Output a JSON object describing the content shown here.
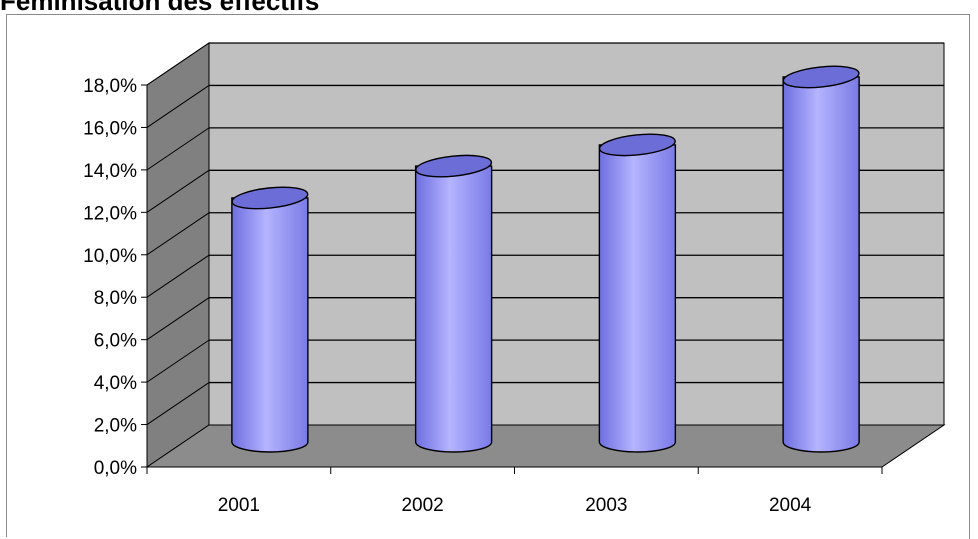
{
  "title": "Féminisation des effectifs",
  "chart_data": {
    "type": "bar",
    "style": "3d-cylinder",
    "categories": [
      "2001",
      "2002",
      "2003",
      "2004"
    ],
    "values": [
      11.5,
      13.0,
      14.0,
      17.2
    ],
    "yticks": [
      "0,0%",
      "2,0%",
      "4,0%",
      "6,0%",
      "8,0%",
      "10,0%",
      "12,0%",
      "14,0%",
      "16,0%",
      "18,0%"
    ],
    "ylim": [
      0,
      18
    ],
    "grid": true,
    "legend": "none",
    "colors": {
      "bar": "#9b9bf5",
      "bar_top": "#6d6dd8",
      "wall": "#c0c0c0",
      "side_wall": "#808080",
      "floor": "#8c8c8c"
    }
  }
}
